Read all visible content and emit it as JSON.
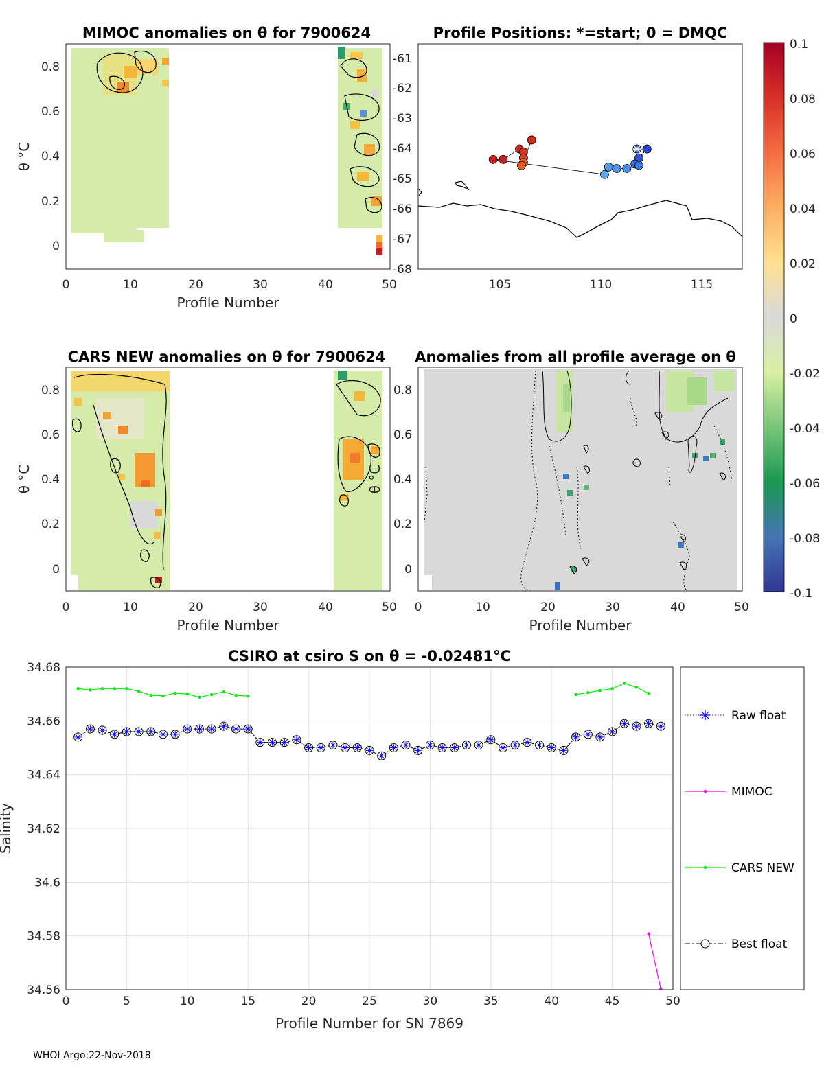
{
  "footer": "WHOI Argo:22-Nov-2018",
  "colorbar": {
    "ticks": [
      "0.1",
      "0.08",
      "0.06",
      "0.04",
      "0.02",
      "0",
      "-0.02",
      "-0.04",
      "-0.06",
      "-0.08",
      "-0.1"
    ],
    "colors": [
      "#a50026",
      "#d73027",
      "#f46d43",
      "#fdae61",
      "#fee090",
      "#d9d9d9",
      "#d9f0a3",
      "#78c679",
      "#1a9850",
      "#4575b4",
      "#313695"
    ]
  },
  "panels": {
    "mimoc": {
      "title": "MIMOC anomalies on θ  for 7900624",
      "xlabel": "Profile Number",
      "ylabel": "θ °C",
      "xticks": [
        "0",
        "10",
        "20",
        "30",
        "40",
        "50"
      ],
      "yticks": [
        "0",
        "0.2",
        "0.4",
        "0.6",
        "0.8"
      ]
    },
    "positions": {
      "title": "Profile Positions: *=start; 0 = DMQC",
      "xticks": [
        "105",
        "110",
        "115"
      ],
      "yticks": [
        "-61",
        "-62",
        "-63",
        "-64",
        "-65",
        "-66",
        "-67",
        "-68"
      ]
    },
    "cars": {
      "title": "CARS NEW anomalies on θ for 7900624",
      "xlabel": "Profile Number",
      "ylabel": "θ °C",
      "xticks": [
        "0",
        "10",
        "20",
        "30",
        "40",
        "50"
      ],
      "yticks": [
        "0",
        "0.2",
        "0.4",
        "0.6",
        "0.8"
      ]
    },
    "avg": {
      "title": "Anomalies from all profile average on θ",
      "xlabel": "Profile Number",
      "ylabel": "θ °C",
      "xticks": [
        "0",
        "10",
        "20",
        "30",
        "40",
        "50"
      ],
      "yticks": [
        "0",
        "0.2",
        "0.4",
        "0.6",
        "0.8"
      ]
    }
  },
  "chart_data": [
    {
      "type": "heatmap",
      "title": "MIMOC anomalies on θ  for 7900624",
      "xlabel": "Profile Number",
      "ylabel": "θ °C",
      "xlim": [
        0,
        50
      ],
      "ylim": [
        -0.12,
        0.89
      ],
      "data_columns": [
        [
          1,
          15
        ],
        [
          42,
          49
        ]
      ]
    },
    {
      "type": "scatter",
      "title": "Profile Positions: *=start; 0 = DMQC",
      "xlim": [
        101,
        117
      ],
      "ylim": [
        -68,
        -60.5
      ],
      "points": [
        {
          "lon": 111.8,
          "lat": -64.0,
          "c": "#3a5bd9",
          "start": true
        },
        {
          "lon": 112.3,
          "lat": -64.0,
          "c": "#2a49cf"
        },
        {
          "lon": 111.9,
          "lat": -64.3,
          "c": "#2f55d6"
        },
        {
          "lon": 111.7,
          "lat": -64.5,
          "c": "#3470e0"
        },
        {
          "lon": 111.9,
          "lat": -64.55,
          "c": "#3a78e3"
        },
        {
          "lon": 111.3,
          "lat": -64.65,
          "c": "#4a8ae8"
        },
        {
          "lon": 110.8,
          "lat": -64.65,
          "c": "#4f96ea"
        },
        {
          "lon": 110.4,
          "lat": -64.6,
          "c": "#4f9aeb"
        },
        {
          "lon": 110.2,
          "lat": -64.85,
          "c": "#5aa8ef"
        },
        {
          "lon": 104.7,
          "lat": -64.35,
          "c": "#c41f1f"
        },
        {
          "lon": 105.2,
          "lat": -64.35,
          "c": "#c52222"
        },
        {
          "lon": 106.0,
          "lat": -64.0,
          "c": "#d12a1f"
        },
        {
          "lon": 106.2,
          "lat": -64.1,
          "c": "#d9341f"
        },
        {
          "lon": 106.2,
          "lat": -64.3,
          "c": "#e0431f"
        },
        {
          "lon": 106.2,
          "lat": -64.45,
          "c": "#e6531f"
        },
        {
          "lon": 106.1,
          "lat": -64.55,
          "c": "#e9601f"
        },
        {
          "lon": 106.6,
          "lat": -63.7,
          "c": "#d62f1f"
        }
      ]
    },
    {
      "type": "heatmap",
      "title": "CARS NEW anomalies on θ for 7900624",
      "xlabel": "Profile Number",
      "ylabel": "θ °C",
      "xlim": [
        0,
        50
      ],
      "ylim": [
        -0.1,
        0.89
      ]
    },
    {
      "type": "heatmap",
      "title": "Anomalies from all profile average on θ",
      "xlabel": "Profile Number",
      "ylabel": "θ °C",
      "xlim": [
        0,
        50
      ],
      "ylim": [
        -0.1,
        0.89
      ]
    },
    {
      "type": "line",
      "title": "CSIRO at csiro S on θ = -0.02481°C",
      "xlabel": "Profile Number for SN 7869",
      "ylabel": "Salinity",
      "xlim": [
        0,
        50
      ],
      "ylim": [
        34.56,
        34.68
      ],
      "xticks": [
        "0",
        "5",
        "10",
        "15",
        "20",
        "25",
        "30",
        "35",
        "40",
        "45",
        "50"
      ],
      "yticks": [
        "34.56",
        "34.58",
        "34.6",
        "34.62",
        "34.64",
        "34.66",
        "34.68"
      ],
      "legend": [
        "Raw float",
        "MIMOC",
        "CARS NEW",
        "Best float"
      ],
      "series": [
        {
          "name": "Best float",
          "x": [
            1,
            2,
            3,
            4,
            5,
            6,
            7,
            8,
            9,
            10,
            11,
            12,
            13,
            14,
            15,
            16,
            17,
            18,
            19,
            20,
            21,
            22,
            23,
            24,
            25,
            26,
            27,
            28,
            29,
            30,
            31,
            32,
            33,
            34,
            35,
            36,
            37,
            38,
            39,
            40,
            41,
            42,
            43,
            44,
            45,
            46,
            47,
            48,
            49
          ],
          "values": [
            34.654,
            34.657,
            34.6565,
            34.655,
            34.656,
            34.656,
            34.656,
            34.655,
            34.655,
            34.657,
            34.657,
            34.657,
            34.658,
            34.657,
            34.657,
            34.652,
            34.652,
            34.652,
            34.653,
            34.65,
            34.65,
            34.651,
            34.65,
            34.65,
            34.649,
            34.647,
            34.65,
            34.651,
            34.649,
            34.651,
            34.65,
            34.65,
            34.651,
            34.651,
            34.653,
            34.65,
            34.651,
            34.652,
            34.651,
            34.65,
            34.649,
            34.654,
            34.655,
            34.654,
            34.656,
            34.659,
            34.658,
            34.659,
            34.658
          ]
        },
        {
          "name": "CARS NEW",
          "x": [
            1,
            2,
            3,
            4,
            5,
            6,
            7,
            8,
            9,
            10,
            11,
            12,
            13,
            14,
            15,
            null,
            42,
            43,
            44,
            45,
            46,
            47,
            48
          ],
          "values": [
            34.672,
            34.6715,
            34.672,
            34.672,
            34.672,
            34.671,
            34.6695,
            34.6693,
            34.6703,
            34.67,
            34.6688,
            34.6698,
            34.6708,
            34.6695,
            34.6692,
            null,
            34.6698,
            34.6705,
            34.6713,
            34.672,
            34.674,
            34.6725,
            34.6702
          ]
        },
        {
          "name": "MIMOC",
          "x": [
            48,
            49
          ],
          "values": [
            34.5808,
            34.5603
          ]
        }
      ]
    }
  ]
}
